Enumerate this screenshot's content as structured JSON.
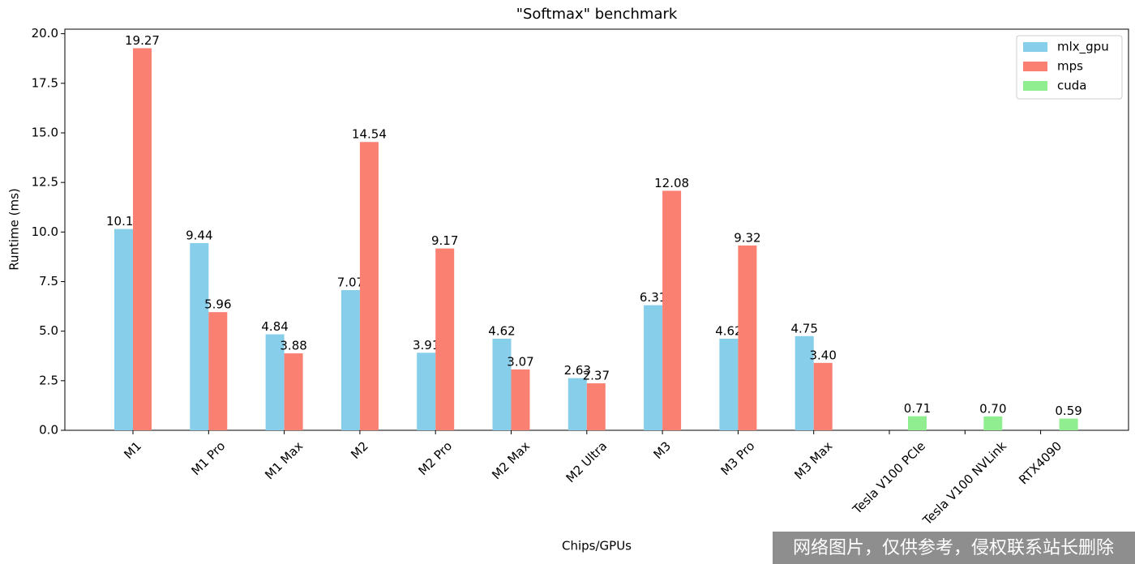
{
  "chart_data": {
    "type": "bar",
    "title": "\"Softmax\" benchmark",
    "x_label": "Chips/GPUs",
    "y_label": "Runtime (ms)",
    "categories": [
      "M1",
      "M1 Pro",
      "M1 Max",
      "M2",
      "M2 Pro",
      "M2 Max",
      "M2 Ultra",
      "M3",
      "M3 Pro",
      "M3 Max",
      "Tesla V100 PCIe",
      "Tesla V100 NVLink",
      "RTX4090"
    ],
    "series": [
      {
        "name": "mlx_gpu",
        "color": "#87ceeb",
        "values": [
          10.15,
          9.44,
          4.84,
          7.07,
          3.91,
          4.62,
          2.63,
          6.31,
          4.62,
          4.75,
          null,
          null,
          null
        ],
        "value_labels": [
          "10.15",
          "9.44",
          "4.84",
          "7.07",
          "3.91",
          "4.62",
          "2.63",
          "6.31",
          "4.62",
          "4.75",
          null,
          null,
          null
        ]
      },
      {
        "name": "mps",
        "color": "#fa8072",
        "values": [
          19.27,
          5.96,
          3.88,
          14.54,
          9.17,
          3.07,
          2.37,
          12.08,
          9.32,
          3.4,
          null,
          null,
          null
        ],
        "value_labels": [
          "19.27",
          "5.96",
          "3.88",
          "14.54",
          "9.17",
          "3.07",
          "2.37",
          "12.08",
          "9.32",
          "3.40",
          null,
          null,
          null
        ]
      },
      {
        "name": "cuda",
        "color": "#90ee90",
        "values": [
          null,
          null,
          null,
          null,
          null,
          null,
          null,
          null,
          null,
          null,
          0.71,
          0.7,
          0.59
        ],
        "value_labels": [
          null,
          null,
          null,
          null,
          null,
          null,
          null,
          null,
          null,
          null,
          "0.71",
          "0.70",
          "0.59"
        ]
      }
    ],
    "ylim": [
      0,
      20.23
    ],
    "yticks": [
      {
        "value": 0,
        "label": "0.0"
      },
      {
        "value": 2.5,
        "label": "2.5"
      },
      {
        "value": 5,
        "label": "5.0"
      },
      {
        "value": 7.5,
        "label": "7.5"
      },
      {
        "value": 10,
        "label": "10.0"
      },
      {
        "value": 12.5,
        "label": "12.5"
      },
      {
        "value": 15,
        "label": "15.0"
      },
      {
        "value": 17.5,
        "label": "17.5"
      },
      {
        "value": 20,
        "label": "20.0"
      }
    ],
    "grid": false,
    "legend": "upper right"
  },
  "watermark": "网络图片，仅供参考，侵权联系站长删除"
}
